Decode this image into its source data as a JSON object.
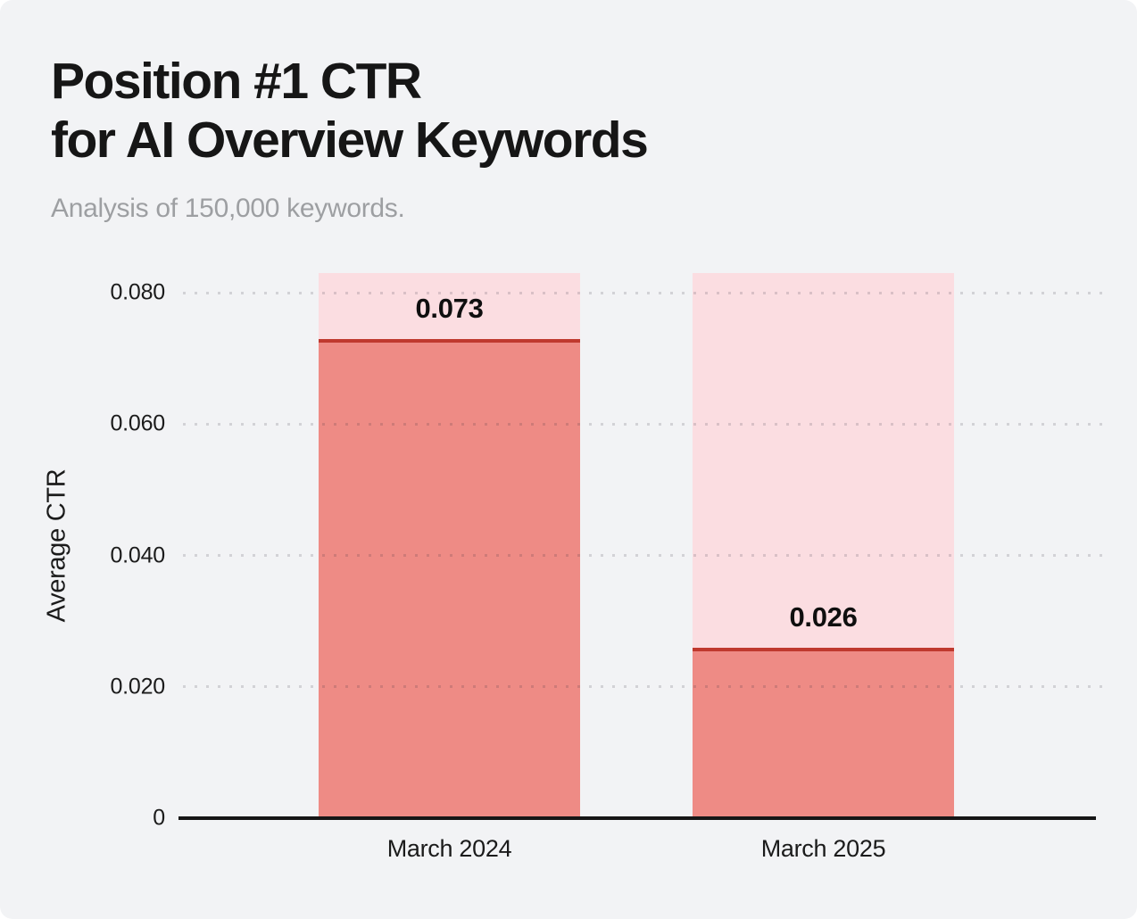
{
  "header": {
    "title_lines": [
      "Position #1 CTR",
      "for AI Overview Keywords"
    ],
    "subtitle": "Analysis of 150,000 keywords."
  },
  "chart_data": {
    "type": "bar",
    "title": "Position #1 CTR for AI Overview Keywords",
    "subtitle": "Analysis of 150,000 keywords.",
    "categories": [
      "March 2024",
      "March 2025"
    ],
    "values": [
      0.073,
      0.026
    ],
    "data_labels": [
      "0.073",
      "0.026"
    ],
    "xlabel": "",
    "ylabel": "Average CTR",
    "ylim": [
      0,
      0.083
    ],
    "y_ticks": [
      {
        "label": "0",
        "value": 0
      },
      {
        "label": "0.020",
        "value": 0.02
      },
      {
        "label": "0.040",
        "value": 0.04
      },
      {
        "label": "0.060",
        "value": 0.06
      },
      {
        "label": "0.080",
        "value": 0.08
      }
    ],
    "grid": "dotted-horizontal",
    "legend": "none",
    "bar_style": {
      "track_to_top": true,
      "note": "each bar has a full-height light pink track behind the salmon value fill; fill topped with a dark red line"
    }
  },
  "colors": {
    "background": "#f2f3f5",
    "title": "#161616",
    "subtitle": "#9d9fa2",
    "axis_line": "#161616",
    "tick_label": "#1b1b1b",
    "grid_dot": "rgba(40,40,55,0.16)",
    "bar_fill": "#ee8b85",
    "bar_track": "#fbdde1",
    "bar_top_line": "#bf392e"
  }
}
